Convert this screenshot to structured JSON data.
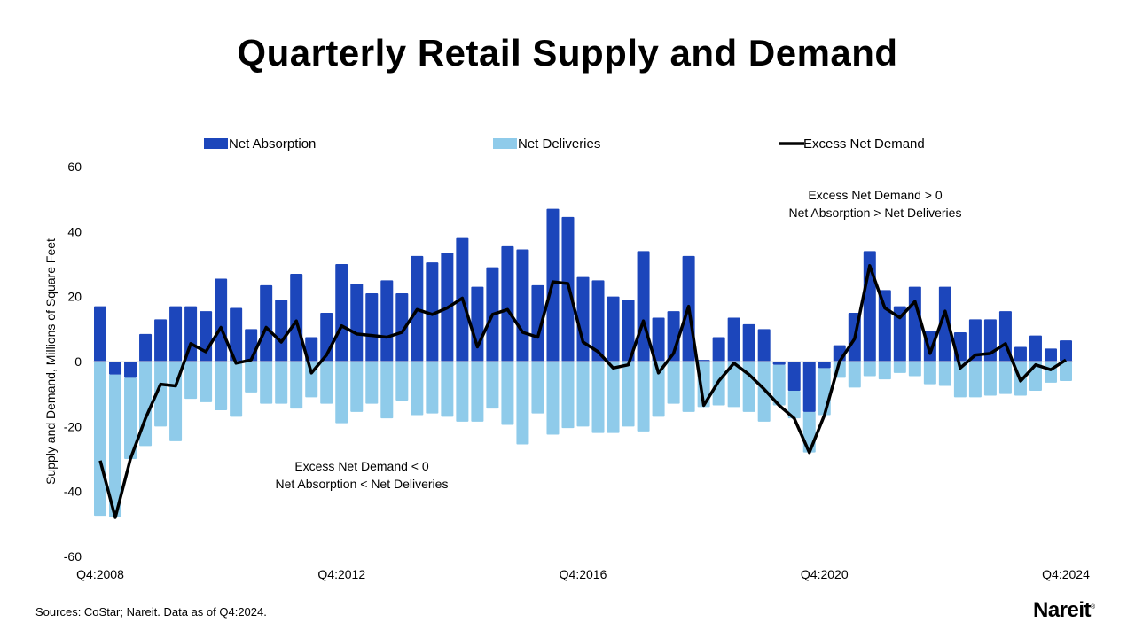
{
  "chart_data": {
    "type": "bar",
    "title": "Quarterly Retail Supply and Demand",
    "ylabel": "Supply and Demand, Millions of Square Feet",
    "xlabel": "",
    "ylim": [
      -60,
      60
    ],
    "yticks": [
      60,
      40,
      20,
      0,
      -20,
      -40,
      -60
    ],
    "xticks": [
      "Q4:2008",
      "Q4:2012",
      "Q4:2016",
      "Q4:2020",
      "Q4:2024"
    ],
    "legend_placement": "top",
    "grid": false,
    "colors": {
      "absorption": "#1c46bb",
      "deliveries": "#8fcbea",
      "line": "#000000"
    },
    "categories": [
      "Q4:2008",
      "Q1:2009",
      "Q2:2009",
      "Q3:2009",
      "Q4:2009",
      "Q1:2010",
      "Q2:2010",
      "Q3:2010",
      "Q4:2010",
      "Q1:2011",
      "Q2:2011",
      "Q3:2011",
      "Q4:2011",
      "Q1:2012",
      "Q2:2012",
      "Q3:2012",
      "Q4:2012",
      "Q1:2013",
      "Q2:2013",
      "Q3:2013",
      "Q4:2013",
      "Q1:2014",
      "Q2:2014",
      "Q3:2014",
      "Q4:2014",
      "Q1:2015",
      "Q2:2015",
      "Q3:2015",
      "Q4:2015",
      "Q1:2016",
      "Q2:2016",
      "Q3:2016",
      "Q4:2016",
      "Q1:2017",
      "Q2:2017",
      "Q3:2017",
      "Q4:2017",
      "Q1:2018",
      "Q2:2018",
      "Q3:2018",
      "Q4:2018",
      "Q1:2019",
      "Q2:2019",
      "Q3:2019",
      "Q4:2019",
      "Q1:2020",
      "Q2:2020",
      "Q3:2020",
      "Q4:2020",
      "Q1:2021",
      "Q2:2021",
      "Q3:2021",
      "Q4:2021",
      "Q1:2022",
      "Q2:2022",
      "Q3:2022",
      "Q4:2022",
      "Q1:2023",
      "Q2:2023",
      "Q3:2023",
      "Q4:2023",
      "Q1:2024",
      "Q2:2024",
      "Q3:2024",
      "Q4:2024"
    ],
    "series": [
      {
        "name": "Net Absorption",
        "type": "bar",
        "values": [
          17,
          -4,
          -5,
          8.5,
          13,
          17,
          17,
          15.5,
          25.5,
          16.5,
          10,
          23.5,
          19,
          27,
          7.5,
          15,
          30,
          24,
          21,
          25,
          21,
          32.5,
          30.5,
          33.5,
          38,
          23,
          29,
          35.5,
          34.5,
          23.5,
          47,
          44.5,
          26,
          25,
          20,
          19,
          34,
          13.5,
          15.5,
          32.5,
          0.5,
          7.5,
          13.5,
          11.5,
          10,
          -1,
          -9,
          -15.5,
          -2,
          5,
          15,
          34,
          22,
          17,
          23,
          9.5,
          23,
          9,
          13,
          13,
          15.5,
          4.5,
          8,
          4,
          6.5
        ]
      },
      {
        "name": "Net Deliveries",
        "type": "bar",
        "values": [
          -47.5,
          -44,
          -25,
          -26,
          -20,
          -24.5,
          -11.5,
          -12.5,
          -15,
          -17,
          -9.5,
          -13,
          -13,
          -14.5,
          -11,
          -13,
          -19,
          -15.5,
          -13,
          -17.5,
          -12,
          -16.5,
          -16,
          -17,
          -18.5,
          -18.5,
          -14.5,
          -19.5,
          -25.5,
          -16,
          -22.5,
          -20.5,
          -20,
          -22,
          -22,
          -20,
          -21.5,
          -17,
          -13,
          -15.5,
          -14,
          -13.5,
          -14,
          -15.5,
          -18.5,
          -12.5,
          -8.5,
          -12.5,
          -14.5,
          -5,
          -8,
          -4.5,
          -5.5,
          -3.5,
          -4.5,
          -7,
          -7.5,
          -11,
          -11,
          -10.5,
          -10,
          -10.5,
          -9,
          -6.5,
          -6
        ]
      },
      {
        "name": "Excess Net Demand",
        "type": "line",
        "values": [
          -30.5,
          -48,
          -30,
          -17.5,
          -7,
          -7.5,
          5.5,
          3,
          10.5,
          -0.5,
          0.5,
          10.5,
          6,
          12.5,
          -3.5,
          2,
          11,
          8.5,
          8,
          7.5,
          9,
          16,
          14.5,
          16.5,
          19.5,
          4.5,
          14.5,
          16,
          9,
          7.5,
          24.5,
          24,
          6,
          3,
          -2,
          -1,
          12.5,
          -3.5,
          2.5,
          17,
          -13.5,
          -6,
          -0.5,
          -4,
          -8.5,
          -13.5,
          -17.5,
          -28,
          -16.5,
          0,
          7,
          29.5,
          16.5,
          13.5,
          18.5,
          2.5,
          15.5,
          -2,
          2,
          2.5,
          5.5,
          -6,
          -1,
          -2.5,
          0.5
        ]
      }
    ],
    "annotations": [
      {
        "line1": "Excess Net Demand > 0",
        "line2": "Net Absorption > Net Deliveries"
      },
      {
        "line1": "Excess Net Demand < 0",
        "line2": "Net Absorption < Net Deliveries"
      }
    ]
  },
  "footer": {
    "sources": "Sources: CoStar; Nareit. Data as of Q4:2024.",
    "logo": "Nareit"
  }
}
